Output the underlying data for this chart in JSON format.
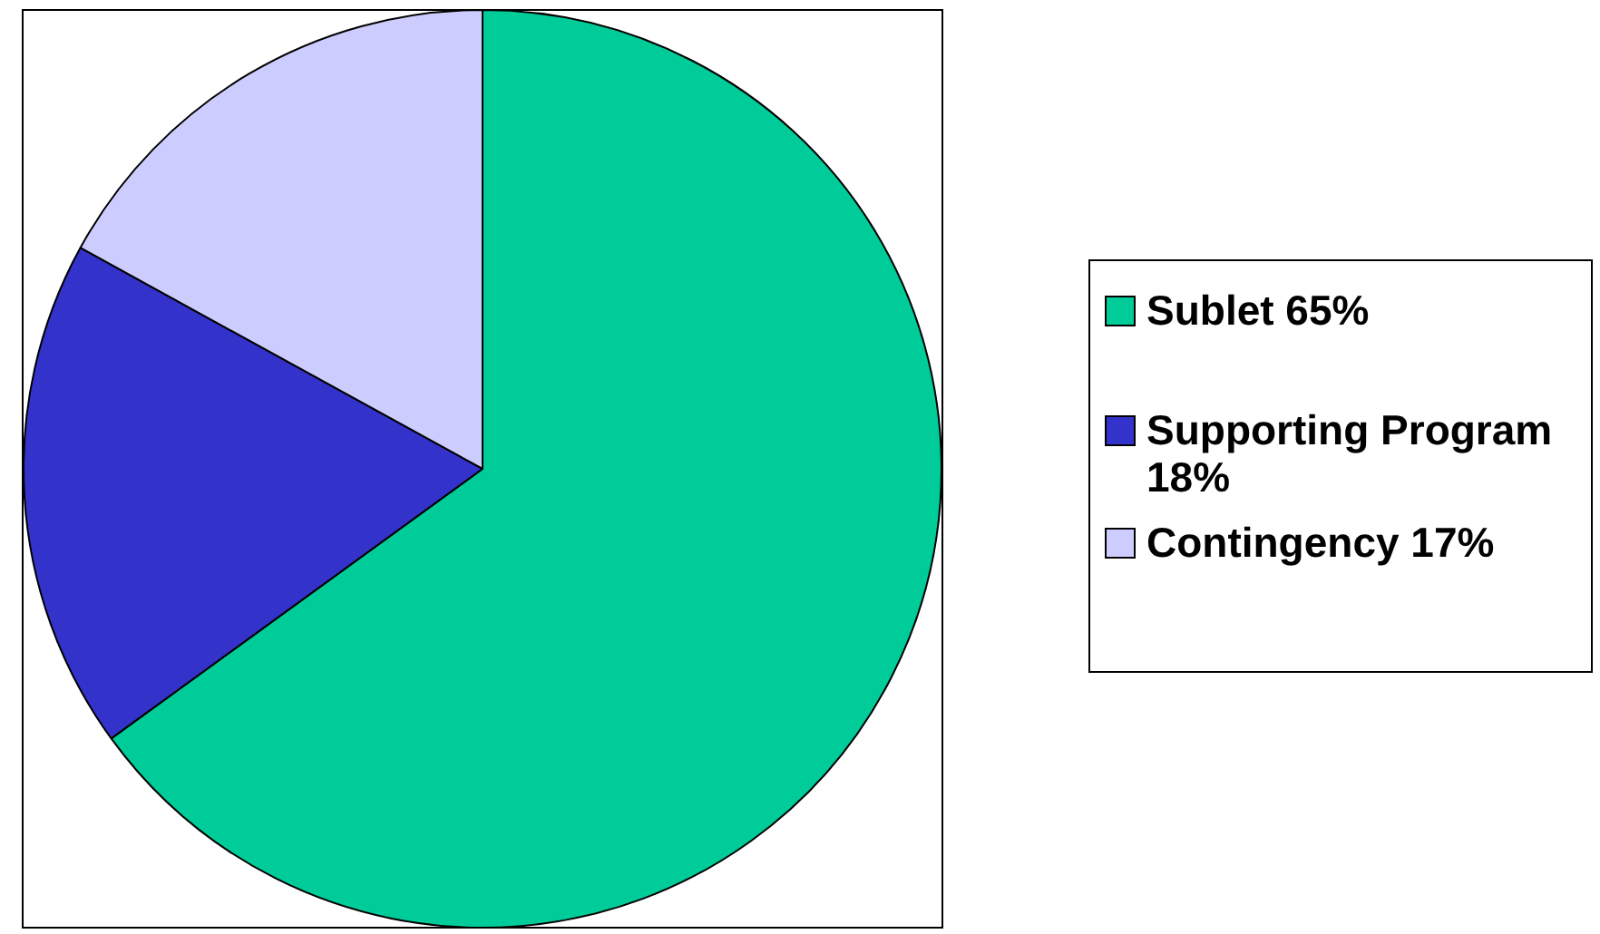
{
  "chart_data": {
    "type": "pie",
    "categories": [
      "Sublet 65%",
      "Supporting Program 18%",
      "Contingency 17%"
    ],
    "values": [
      65,
      18,
      17
    ],
    "colors": [
      "#00cc99",
      "#3333cc",
      "#ccccff"
    ],
    "legend": "right"
  }
}
